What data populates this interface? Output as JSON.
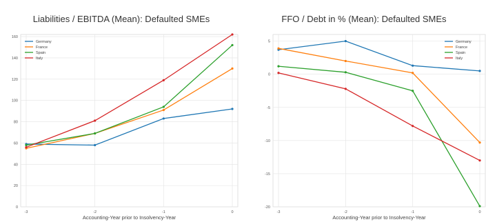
{
  "chart_data": [
    {
      "type": "line",
      "title": "Liabilities / EBITDA (Mean): Defaulted SMEs",
      "xlabel": "Accounting-Year prior to Insolvency-Year",
      "ylabel": "",
      "x": [
        -3,
        -2,
        -1,
        0
      ],
      "xticks": [
        -3,
        -2,
        -1,
        0
      ],
      "xlim": [
        -3,
        0
      ],
      "ylim": [
        0,
        162
      ],
      "yticks": [
        0,
        20,
        40,
        60,
        80,
        100,
        120,
        140,
        160
      ],
      "grid": true,
      "legend": "top-left",
      "series": [
        {
          "name": "Germany",
          "color": "#1f77b4",
          "values": [
            59,
            58,
            83,
            92
          ]
        },
        {
          "name": "France",
          "color": "#ff7f0e",
          "values": [
            55,
            69,
            91,
            130
          ]
        },
        {
          "name": "Spain",
          "color": "#2ca02c",
          "values": [
            58,
            69,
            94,
            152
          ]
        },
        {
          "name": "Italy",
          "color": "#d62728",
          "values": [
            56,
            81,
            119,
            162
          ]
        }
      ]
    },
    {
      "type": "line",
      "title": "FFO / Debt in % (Mean): Defaulted SMEs",
      "xlabel": "Accounting-Year prior to Insolvency-Year",
      "ylabel": "",
      "x": [
        -3,
        -2,
        -1,
        0
      ],
      "xticks": [
        -3,
        -2,
        -1,
        0
      ],
      "xlim": [
        -3,
        0
      ],
      "ylim": [
        -20,
        6
      ],
      "yticks": [
        -20,
        -15,
        -10,
        -5,
        0,
        5
      ],
      "grid": true,
      "legend": "top-right",
      "series": [
        {
          "name": "Germany",
          "color": "#1f77b4",
          "values": [
            3.7,
            5.0,
            1.3,
            0.5
          ]
        },
        {
          "name": "France",
          "color": "#ff7f0e",
          "values": [
            3.9,
            2.0,
            0.2,
            -10.3
          ]
        },
        {
          "name": "Spain",
          "color": "#2ca02c",
          "values": [
            1.2,
            0.3,
            -2.5,
            -19.9
          ]
        },
        {
          "name": "Italy",
          "color": "#d62728",
          "values": [
            0.2,
            -2.2,
            -7.8,
            -13.0
          ]
        }
      ]
    }
  ]
}
